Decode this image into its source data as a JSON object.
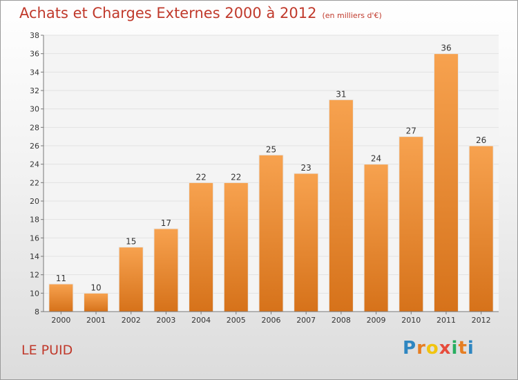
{
  "title": "Achats et Charges Externes 2000 à 2012",
  "subtitle": "(en milliers d'€)",
  "place": "LE PUID",
  "logo": {
    "text": "Proxiti",
    "letter_colors": [
      "#2e86c1",
      "#e67e22",
      "#f1c40f",
      "#e74c3c",
      "#27ae60",
      "#e67e22",
      "#2e86c1"
    ]
  },
  "colors": {
    "bar_light": "#f7a24f",
    "bar_dark": "#d6721a",
    "title": "#c0392b",
    "axis": "#777777",
    "grid": "#e2e2e2"
  },
  "chart_data": {
    "type": "bar",
    "title": "Achats et Charges Externes 2000 à 2012",
    "subtitle": "(en milliers d'€)",
    "categories": [
      "2000",
      "2001",
      "2002",
      "2003",
      "2004",
      "2005",
      "2006",
      "2007",
      "2008",
      "2009",
      "2010",
      "2011",
      "2012"
    ],
    "values": [
      11,
      10,
      15,
      17,
      22,
      22,
      25,
      23,
      31,
      24,
      27,
      36,
      26
    ],
    "ylim": [
      8,
      38
    ],
    "yticks": [
      8,
      10,
      12,
      14,
      16,
      18,
      20,
      22,
      24,
      26,
      28,
      30,
      32,
      34,
      36,
      38
    ],
    "xlabel": "",
    "ylabel": "",
    "grid": true,
    "legend": "none"
  }
}
